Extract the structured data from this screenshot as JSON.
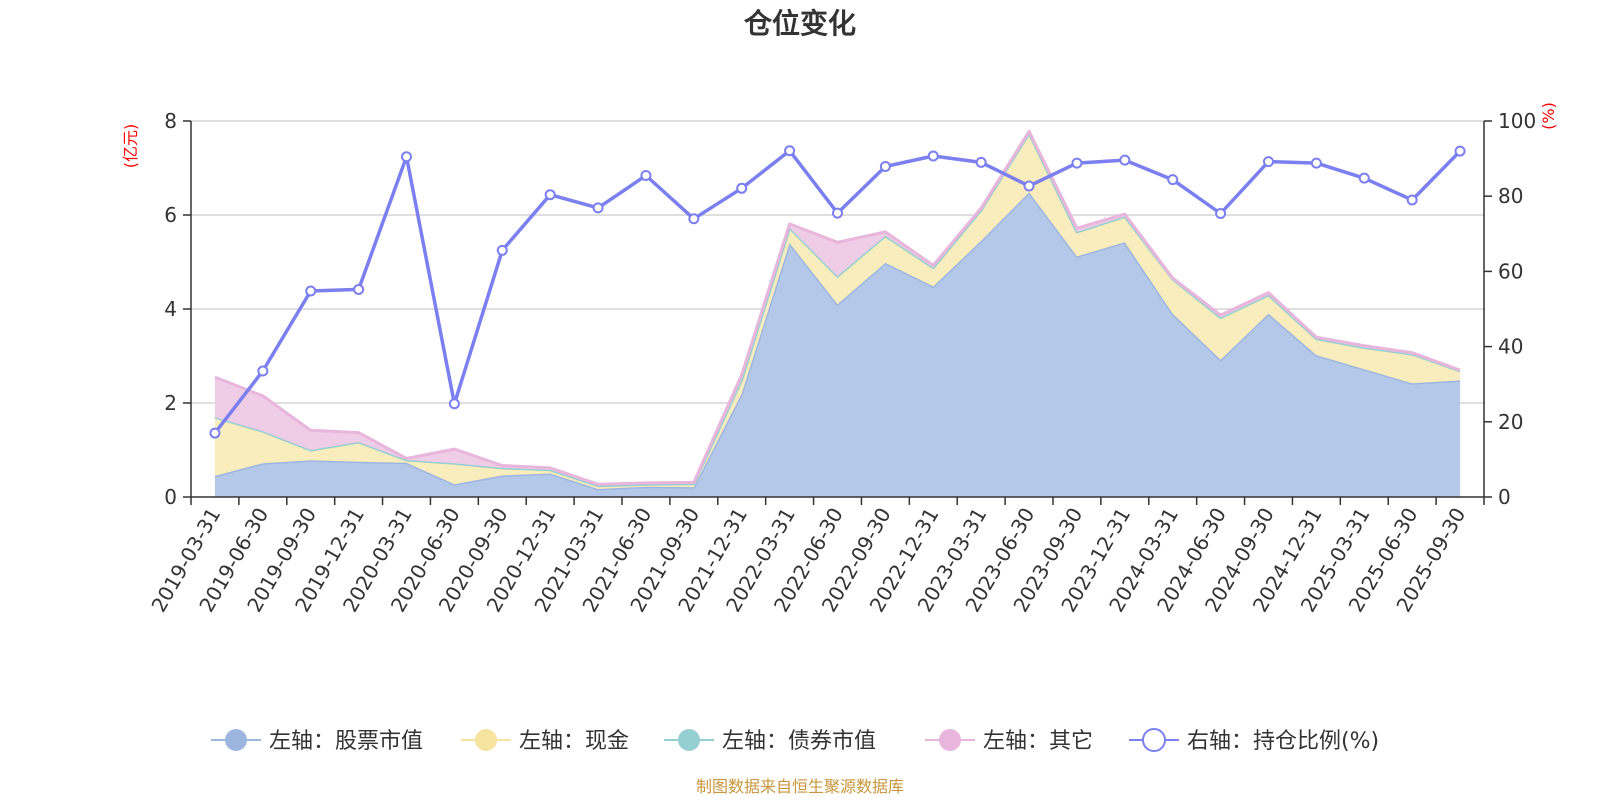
{
  "chart_data": {
    "type": "area",
    "title": "仓位变化",
    "left_unit": "(亿元)",
    "right_unit": "(%)",
    "source_note": "制图数据来自恒生聚源数据库",
    "categories": [
      "2019-03-31",
      "2019-06-30",
      "2019-09-30",
      "2019-12-31",
      "2020-03-31",
      "2020-06-30",
      "2020-09-30",
      "2020-12-31",
      "2021-03-31",
      "2021-06-30",
      "2021-09-30",
      "2021-12-31",
      "2022-03-31",
      "2022-06-30",
      "2022-09-30",
      "2022-12-31",
      "2023-03-31",
      "2023-06-30",
      "2023-09-30",
      "2023-12-31",
      "2024-03-31",
      "2024-06-30",
      "2024-09-30",
      "2024-12-31",
      "2025-03-31",
      "2025-06-30",
      "2025-09-30"
    ],
    "left_axis": {
      "min": 0,
      "max": 8,
      "ticks": [
        0,
        2,
        4,
        6,
        8
      ]
    },
    "right_axis": {
      "min": 0,
      "max": 100,
      "ticks": [
        0,
        20,
        40,
        60,
        80,
        100
      ]
    },
    "grid": true,
    "legend_position": "bottom",
    "series": [
      {
        "name": "左轴：股票市值",
        "axis": "left",
        "stack": true,
        "color": "#9db6e0",
        "fill": "#b4c9ea",
        "values": [
          0.45,
          0.72,
          0.78,
          0.75,
          0.73,
          0.27,
          0.46,
          0.5,
          0.17,
          0.22,
          0.21,
          2.2,
          5.4,
          4.1,
          4.98,
          4.48,
          5.45,
          6.48,
          5.12,
          5.42,
          3.9,
          2.92,
          3.9,
          3.02,
          2.72,
          2.42,
          2.48
        ]
      },
      {
        "name": "左轴：现金",
        "axis": "left",
        "stack": true,
        "color": "#f7e3a0",
        "fill": "#f9ecbd",
        "values": [
          1.25,
          0.68,
          0.22,
          0.42,
          0.06,
          0.45,
          0.16,
          0.08,
          0.07,
          0.05,
          0.07,
          0.3,
          0.33,
          0.6,
          0.58,
          0.4,
          0.66,
          1.26,
          0.52,
          0.55,
          0.74,
          0.9,
          0.4,
          0.35,
          0.46,
          0.62,
          0.2
        ]
      },
      {
        "name": "左轴：债券市值",
        "axis": "left",
        "stack": true,
        "color": "#96cfd2",
        "fill": "#a9d9db",
        "values": [
          0,
          0,
          0,
          0,
          0,
          0,
          0,
          0,
          0,
          0,
          0,
          0,
          0,
          0,
          0,
          0,
          0,
          0,
          0,
          0,
          0,
          0,
          0,
          0,
          0,
          0,
          0
        ]
      },
      {
        "name": "左轴：其它",
        "axis": "left",
        "stack": true,
        "color": "#e8b6dc",
        "fill": "#f0cde6",
        "values": [
          0.85,
          0.75,
          0.42,
          0.2,
          0.03,
          0.3,
          0.05,
          0.04,
          0.03,
          0.03,
          0.03,
          0.1,
          0.08,
          0.72,
          0.08,
          0.05,
          0.04,
          0.04,
          0.08,
          0.05,
          0.02,
          0.05,
          0.05,
          0.03,
          0.04,
          0.03,
          0.02
        ]
      },
      {
        "name": "右轴：持仓比例(%)",
        "axis": "right",
        "type": "line",
        "color": "#7b7fef",
        "values": [
          17.0,
          33.5,
          54.8,
          55.2,
          90.5,
          24.8,
          65.6,
          80.4,
          76.9,
          85.5,
          74.0,
          82.1,
          92.1,
          75.5,
          87.9,
          90.7,
          89.0,
          82.7,
          88.8,
          89.6,
          84.4,
          75.4,
          89.2,
          88.8,
          84.8,
          79.0,
          92.0
        ]
      }
    ]
  }
}
